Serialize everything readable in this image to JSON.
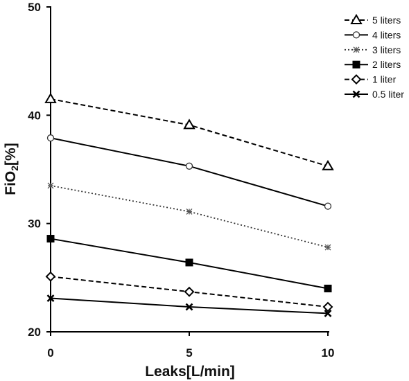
{
  "chart_data": {
    "type": "line",
    "title": "",
    "xlabel": "Leaks[L/min]",
    "ylabel_main": "FiO",
    "ylabel_sub": "2",
    "ylabel_tail": "[%]",
    "x": [
      0,
      5,
      10
    ],
    "x_ticks": [
      "0",
      "5",
      "10"
    ],
    "xlim": [
      0,
      10
    ],
    "ylim": [
      20,
      50
    ],
    "y_ticks": [
      "20",
      "30",
      "40",
      "50"
    ],
    "grid": false,
    "legend_position": "top-right",
    "series": [
      {
        "name": "5 liters",
        "values": [
          41.5,
          39.1,
          35.3
        ],
        "line": "dashed",
        "marker": "triangle-open"
      },
      {
        "name": "4 liters",
        "values": [
          37.9,
          35.3,
          31.6
        ],
        "line": "solid",
        "marker": "circle-open"
      },
      {
        "name": "3 liters",
        "values": [
          33.5,
          31.1,
          27.8
        ],
        "line": "dotted",
        "marker": "asterisk"
      },
      {
        "name": "2 liters",
        "values": [
          28.6,
          26.4,
          24.0
        ],
        "line": "solid",
        "marker": "square-filled"
      },
      {
        "name": "1 liter",
        "values": [
          25.1,
          23.7,
          22.3
        ],
        "line": "dashed",
        "marker": "diamond-open"
      },
      {
        "name": "0.5 liter",
        "values": [
          23.1,
          22.3,
          21.7
        ],
        "line": "solid",
        "marker": "x-cross"
      }
    ]
  }
}
